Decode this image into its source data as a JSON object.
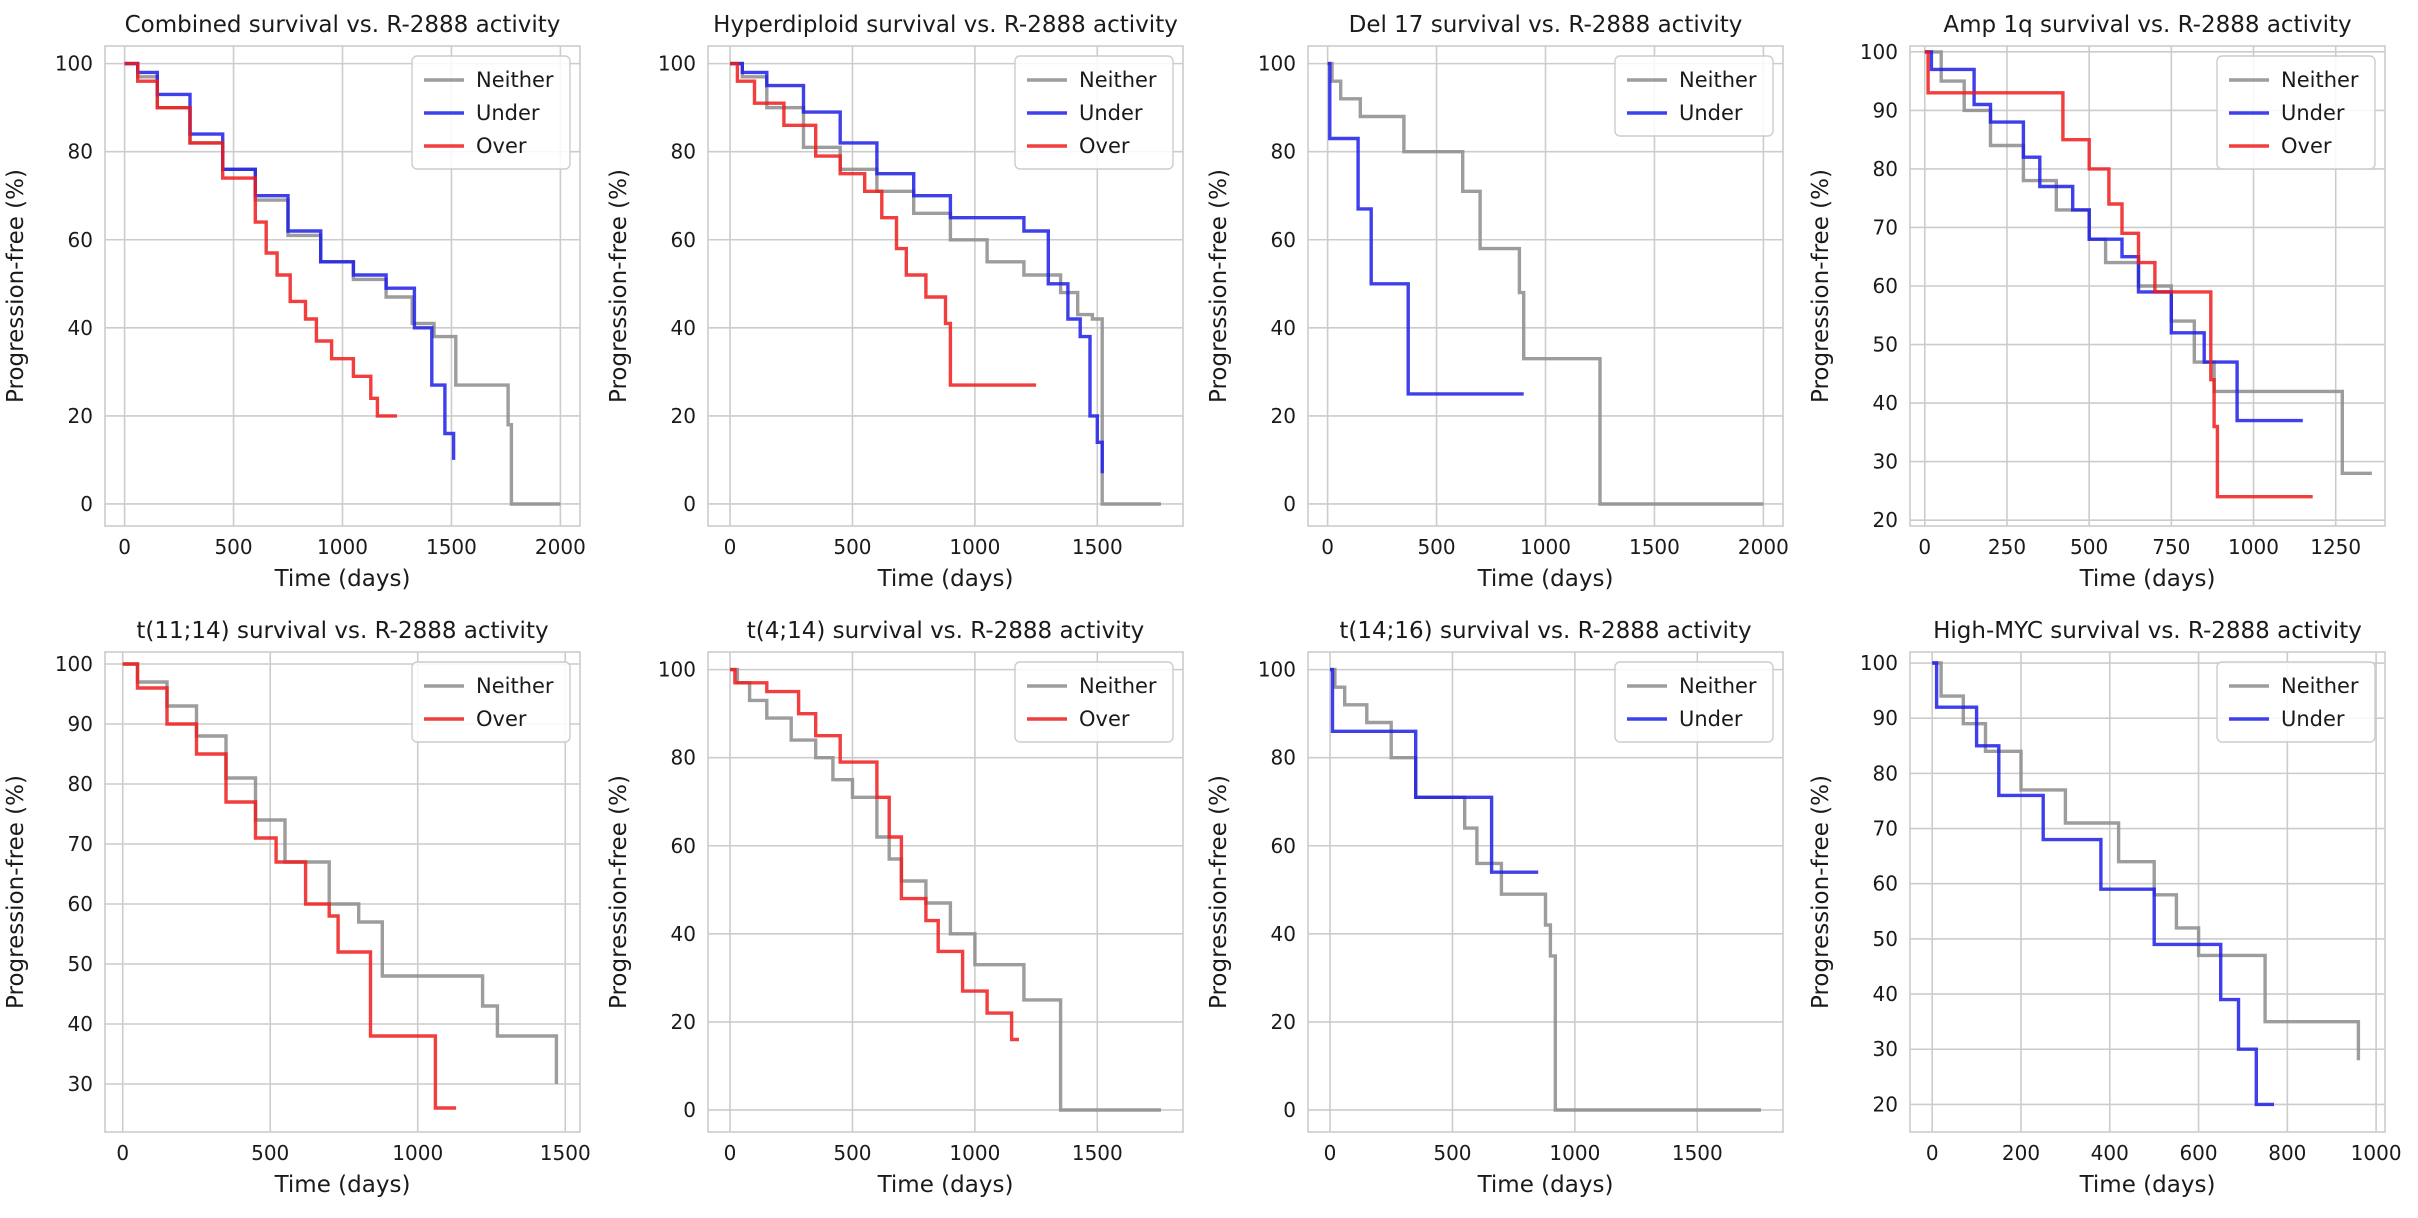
{
  "figure": {
    "colors": {
      "Neither": "#8c8c8c",
      "Under": "#1f1fe8",
      "Over": "#ee1c1c"
    }
  },
  "chart_data": [
    {
      "type": "line",
      "title": "Combined survival vs. R-2888 activity",
      "xlabel": "Time (days)",
      "ylabel": "Progression-free (%)",
      "xlim": [
        -90,
        2090
      ],
      "ylim": [
        -5,
        104
      ],
      "xticks": [
        0,
        500,
        1000,
        1500,
        2000
      ],
      "yticks": [
        0,
        20,
        40,
        60,
        80,
        100
      ],
      "grid": true,
      "legend_position": "top-right",
      "series": [
        {
          "name": "Neither",
          "x": [
            0,
            60,
            150,
            300,
            450,
            600,
            750,
            900,
            1050,
            1200,
            1320,
            1420,
            1520,
            1760,
            1775,
            2000
          ],
          "y": [
            100,
            97,
            90,
            82,
            76,
            69,
            61,
            55,
            51,
            47,
            41,
            38,
            27,
            18,
            0,
            0
          ]
        },
        {
          "name": "Under",
          "x": [
            0,
            60,
            150,
            300,
            450,
            600,
            750,
            900,
            1050,
            1200,
            1330,
            1410,
            1470,
            1510
          ],
          "y": [
            100,
            98,
            93,
            84,
            76,
            70,
            62,
            55,
            52,
            49,
            40,
            27,
            16,
            10
          ]
        },
        {
          "name": "Over",
          "x": [
            0,
            60,
            150,
            300,
            450,
            600,
            650,
            700,
            760,
            830,
            880,
            950,
            1050,
            1130,
            1160,
            1250
          ],
          "y": [
            100,
            96,
            90,
            82,
            74,
            64,
            57,
            52,
            46,
            42,
            37,
            33,
            29,
            24,
            20,
            20
          ]
        }
      ]
    },
    {
      "type": "line",
      "title": "Hyperdiploid survival vs. R-2888 activity",
      "xlabel": "Time (days)",
      "ylabel": "Progression-free (%)",
      "xlim": [
        -90,
        1850
      ],
      "ylim": [
        -5,
        104
      ],
      "xticks": [
        0,
        500,
        1000,
        1500
      ],
      "yticks": [
        0,
        20,
        40,
        60,
        80,
        100
      ],
      "grid": true,
      "legend_position": "top-right",
      "series": [
        {
          "name": "Neither",
          "x": [
            0,
            50,
            150,
            300,
            450,
            600,
            750,
            900,
            1050,
            1200,
            1350,
            1420,
            1480,
            1520,
            1760
          ],
          "y": [
            100,
            97,
            90,
            81,
            76,
            71,
            66,
            60,
            55,
            52,
            48,
            43,
            42,
            0,
            0
          ]
        },
        {
          "name": "Under",
          "x": [
            0,
            50,
            150,
            300,
            450,
            600,
            750,
            900,
            1050,
            1200,
            1300,
            1380,
            1430,
            1470,
            1500,
            1520
          ],
          "y": [
            100,
            98,
            95,
            89,
            82,
            75,
            70,
            65,
            65,
            62,
            50,
            42,
            38,
            20,
            14,
            7
          ]
        },
        {
          "name": "Over",
          "x": [
            0,
            30,
            100,
            220,
            350,
            450,
            550,
            620,
            680,
            720,
            800,
            880,
            900,
            1250
          ],
          "y": [
            100,
            96,
            91,
            86,
            79,
            75,
            71,
            65,
            58,
            52,
            47,
            41,
            27,
            27
          ]
        }
      ]
    },
    {
      "type": "line",
      "title": "Del 17 survival vs. R-2888 activity",
      "xlabel": "Time (days)",
      "ylabel": "Progression-free (%)",
      "xlim": [
        -90,
        2090
      ],
      "ylim": [
        -5,
        104
      ],
      "xticks": [
        0,
        500,
        1000,
        1500,
        2000
      ],
      "yticks": [
        0,
        20,
        40,
        60,
        80,
        100
      ],
      "grid": true,
      "legend_position": "top-right",
      "series": [
        {
          "name": "Neither",
          "x": [
            0,
            20,
            60,
            150,
            350,
            580,
            620,
            700,
            880,
            900,
            1250,
            2000
          ],
          "y": [
            100,
            96,
            92,
            88,
            80,
            80,
            71,
            58,
            48,
            33,
            0,
            0
          ]
        },
        {
          "name": "Under",
          "x": [
            0,
            10,
            140,
            200,
            370,
            900
          ],
          "y": [
            100,
            83,
            67,
            50,
            25,
            25
          ]
        }
      ]
    },
    {
      "type": "line",
      "title": "Amp 1q survival vs. R-2888 activity",
      "xlabel": "Time (days)",
      "ylabel": "Progression-free (%)",
      "xlim": [
        -45,
        1400
      ],
      "ylim": [
        19,
        101
      ],
      "xticks": [
        0,
        250,
        500,
        750,
        1000,
        1250
      ],
      "yticks": [
        20,
        30,
        40,
        50,
        60,
        70,
        80,
        90,
        100
      ],
      "grid": true,
      "legend_position": "top-right",
      "series": [
        {
          "name": "Neither",
          "x": [
            0,
            50,
            120,
            200,
            300,
            400,
            500,
            550,
            650,
            750,
            820,
            880,
            1250,
            1270,
            1360
          ],
          "y": [
            100,
            95,
            90,
            84,
            78,
            73,
            68,
            64,
            60,
            54,
            47,
            42,
            42,
            28,
            28
          ]
        },
        {
          "name": "Under",
          "x": [
            0,
            20,
            150,
            200,
            300,
            350,
            450,
            500,
            600,
            650,
            750,
            850,
            950,
            1150
          ],
          "y": [
            100,
            97,
            91,
            88,
            82,
            77,
            73,
            68,
            65,
            59,
            52,
            47,
            37,
            37
          ]
        },
        {
          "name": "Over",
          "x": [
            0,
            10,
            370,
            420,
            500,
            560,
            600,
            650,
            700,
            720,
            870,
            880,
            890,
            1180
          ],
          "y": [
            100,
            93,
            93,
            85,
            80,
            74,
            69,
            64,
            59,
            59,
            44,
            36,
            24,
            24
          ]
        }
      ]
    },
    {
      "type": "line",
      "title": "t(11;14) survival vs. R-2888 activity",
      "xlabel": "Time (days)",
      "ylabel": "Progression-free (%)",
      "xlim": [
        -60,
        1550
      ],
      "ylim": [
        22,
        102
      ],
      "xticks": [
        0,
        500,
        1000,
        1500
      ],
      "yticks": [
        30,
        40,
        50,
        60,
        70,
        80,
        90,
        100
      ],
      "grid": true,
      "legend_position": "top-right",
      "series": [
        {
          "name": "Neither",
          "x": [
            0,
            50,
            150,
            250,
            350,
            450,
            550,
            700,
            800,
            880,
            1160,
            1220,
            1270,
            1470
          ],
          "y": [
            100,
            97,
            93,
            88,
            81,
            74,
            67,
            60,
            57,
            48,
            48,
            43,
            38,
            30
          ]
        },
        {
          "name": "Over",
          "x": [
            0,
            50,
            150,
            250,
            350,
            450,
            520,
            620,
            700,
            730,
            840,
            1060,
            1130
          ],
          "y": [
            100,
            96,
            90,
            85,
            77,
            71,
            67,
            60,
            58,
            52,
            38,
            26,
            26
          ]
        }
      ]
    },
    {
      "type": "line",
      "title": "t(4;14) survival vs. R-2888 activity",
      "xlabel": "Time (days)",
      "ylabel": "Progression-free (%)",
      "xlim": [
        -90,
        1850
      ],
      "ylim": [
        -5,
        104
      ],
      "xticks": [
        0,
        500,
        1000,
        1500
      ],
      "yticks": [
        0,
        20,
        40,
        60,
        80,
        100
      ],
      "grid": true,
      "legend_position": "top-right",
      "series": [
        {
          "name": "Neither",
          "x": [
            0,
            30,
            80,
            150,
            250,
            350,
            420,
            500,
            560,
            600,
            650,
            700,
            800,
            900,
            1000,
            1200,
            1350,
            1760
          ],
          "y": [
            100,
            97,
            93,
            89,
            84,
            80,
            75,
            71,
            71,
            62,
            57,
            52,
            47,
            40,
            33,
            25,
            0,
            0
          ]
        },
        {
          "name": "Over",
          "x": [
            0,
            20,
            150,
            280,
            350,
            450,
            550,
            600,
            650,
            700,
            800,
            850,
            950,
            1050,
            1150,
            1180
          ],
          "y": [
            100,
            97,
            95,
            90,
            85,
            79,
            79,
            71,
            62,
            48,
            43,
            36,
            27,
            22,
            16,
            16
          ]
        }
      ]
    },
    {
      "type": "line",
      "title": "t(14;16) survival vs. R-2888 activity",
      "xlabel": "Time (days)",
      "ylabel": "Progression-free (%)",
      "xlim": [
        -90,
        1850
      ],
      "ylim": [
        -5,
        104
      ],
      "xticks": [
        0,
        500,
        1000,
        1500
      ],
      "yticks": [
        0,
        20,
        40,
        60,
        80,
        100
      ],
      "grid": true,
      "legend_position": "top-right",
      "series": [
        {
          "name": "Neither",
          "x": [
            0,
            20,
            60,
            150,
            250,
            350,
            550,
            600,
            700,
            880,
            900,
            920,
            1760
          ],
          "y": [
            100,
            96,
            92,
            88,
            80,
            71,
            64,
            56,
            49,
            42,
            35,
            0,
            0
          ]
        },
        {
          "name": "Under",
          "x": [
            0,
            10,
            350,
            660,
            850
          ],
          "y": [
            100,
            86,
            71,
            54,
            54
          ]
        }
      ]
    },
    {
      "type": "line",
      "title": "High-MYC survival vs. R-2888 activity",
      "xlabel": "Time (days)",
      "ylabel": "Progression-free (%)",
      "xlim": [
        -50,
        1020
      ],
      "ylim": [
        15,
        102
      ],
      "xticks": [
        0,
        200,
        400,
        600,
        800,
        1000
      ],
      "yticks": [
        20,
        30,
        40,
        50,
        60,
        70,
        80,
        90,
        100
      ],
      "grid": true,
      "legend_position": "top-right",
      "series": [
        {
          "name": "Neither",
          "x": [
            0,
            20,
            70,
            120,
            200,
            300,
            420,
            500,
            550,
            600,
            750,
            960
          ],
          "y": [
            100,
            94,
            89,
            84,
            77,
            71,
            64,
            58,
            52,
            47,
            35,
            28
          ]
        },
        {
          "name": "Under",
          "x": [
            0,
            10,
            100,
            150,
            250,
            380,
            500,
            650,
            690,
            730,
            770
          ],
          "y": [
            100,
            92,
            85,
            76,
            68,
            59,
            49,
            39,
            30,
            20,
            20
          ]
        }
      ]
    }
  ]
}
